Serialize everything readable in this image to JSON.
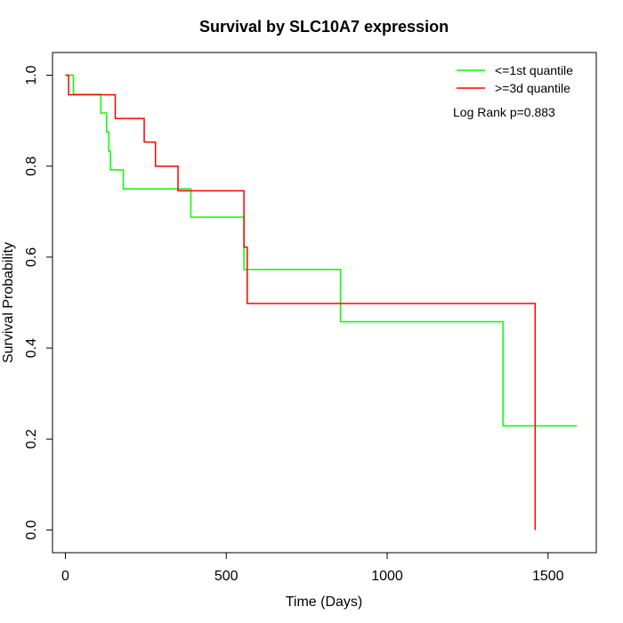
{
  "chart_data": {
    "type": "line",
    "title": "Survival by SLC10A7 expression",
    "xlabel": "Time (Days)",
    "ylabel": "Survival Probability",
    "xlim": [
      -40,
      1650
    ],
    "ylim": [
      -0.05,
      1.05
    ],
    "xticks": [
      0,
      500,
      1000,
      1500
    ],
    "yticks": [
      0.0,
      0.2,
      0.4,
      0.6,
      0.8,
      1.0
    ],
    "xtick_labels": [
      "0",
      "500",
      "1000",
      "1500"
    ],
    "ytick_labels": [
      "0.0",
      "0.2",
      "0.4",
      "0.6",
      "0.8",
      "1.0"
    ],
    "grid": false,
    "legend_position": "top-right",
    "annotation": "Log Rank p=0.883",
    "series": [
      {
        "name": "<=1st quantile",
        "color": "#00ff00",
        "step_times": [
          0,
          25,
          110,
          128,
          135,
          140,
          145,
          180,
          390,
          550,
          555,
          855,
          1360,
          1590
        ],
        "survival": [
          1.0,
          0.958,
          0.917,
          0.875,
          0.833,
          0.792,
          0.792,
          0.75,
          0.688,
          0.688,
          0.573,
          0.458,
          0.229,
          0.229
        ]
      },
      {
        "name": ">=3d quantile",
        "color": "#ff0000",
        "step_times": [
          0,
          10,
          155,
          245,
          280,
          350,
          555,
          565,
          1460,
          1460
        ],
        "survival": [
          1.0,
          0.957,
          0.905,
          0.853,
          0.8,
          0.746,
          0.622,
          0.498,
          0.498,
          0.0
        ]
      }
    ]
  }
}
